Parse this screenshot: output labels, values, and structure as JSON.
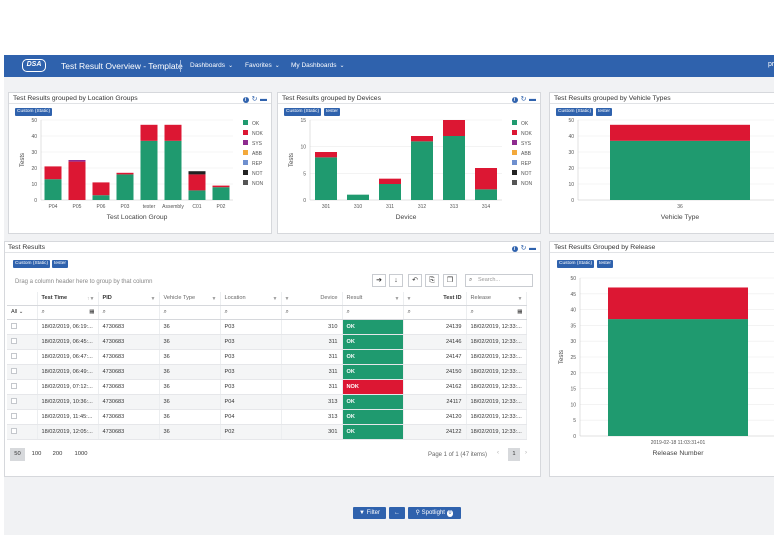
{
  "header": {
    "logo": "DSA",
    "title": "Test Result Overview - Template",
    "menus": [
      "Dashboards",
      "Favorites",
      "My Dashboards"
    ],
    "user": "pr"
  },
  "tags": {
    "custom": "Custom (Static)",
    "tester": "tester"
  },
  "legend": [
    "OK",
    "NOK",
    "SYS",
    "ABB",
    "REP",
    "NOT",
    "NON"
  ],
  "colors": {
    "OK": "#1f9a6f",
    "NOK": "#dc1733",
    "SYS": "#8d2a8f",
    "ABB": "#f3a93b",
    "REP": "#6e8fcf",
    "NOT": "#222222",
    "NON": "#555555",
    "brand": "#2f62ad"
  },
  "panels": {
    "location": {
      "title": "Test Results grouped by Location Groups"
    },
    "devices": {
      "title": "Test Results grouped by Devices"
    },
    "vehicle": {
      "title": "Test Results grouped by Vehicle Types"
    },
    "results": {
      "title": "Test Results"
    },
    "release": {
      "title": "Test Results Grouped by Release"
    }
  },
  "chart_data": [
    {
      "type": "bar",
      "stacked": true,
      "title": "Test Results grouped by Location Groups",
      "xlabel": "Test Location Group",
      "ylabel": "Tests",
      "ylim": [
        0,
        50
      ],
      "yticks": [
        0,
        10,
        20,
        30,
        40,
        50
      ],
      "categories": [
        "P04",
        "P05",
        "P06",
        "P03",
        "tester",
        "Assembly",
        "C01",
        "P02"
      ],
      "series": [
        {
          "name": "OK",
          "values": [
            13,
            0,
            3,
            16,
            37,
            37,
            6,
            8
          ]
        },
        {
          "name": "NOK",
          "values": [
            8,
            24,
            8,
            1,
            10,
            10,
            10,
            1
          ]
        },
        {
          "name": "SYS",
          "values": [
            0,
            1,
            0,
            0,
            0,
            0,
            0,
            0
          ]
        },
        {
          "name": "NOT",
          "values": [
            0,
            0,
            0,
            0,
            0,
            0,
            2,
            0
          ]
        }
      ],
      "legend": "right"
    },
    {
      "type": "bar",
      "stacked": true,
      "title": "Test Results grouped by Devices",
      "xlabel": "Device",
      "ylabel": "Tests",
      "ylim": [
        0,
        15
      ],
      "yticks": [
        0,
        5,
        10,
        15
      ],
      "categories": [
        "301",
        "310",
        "311",
        "312",
        "313",
        "314"
      ],
      "series": [
        {
          "name": "OK",
          "values": [
            8,
            1,
            3,
            11,
            12,
            2
          ]
        },
        {
          "name": "NOK",
          "values": [
            1,
            0,
            1,
            1,
            3,
            4
          ]
        }
      ],
      "legend": "right"
    },
    {
      "type": "bar",
      "stacked": true,
      "title": "Test Results grouped by Vehicle Types",
      "xlabel": "Vehicle Type",
      "ylabel": "",
      "ylim": [
        0,
        50
      ],
      "yticks": [
        0,
        10,
        20,
        30,
        40,
        50
      ],
      "categories": [
        "36"
      ],
      "series": [
        {
          "name": "OK",
          "values": [
            37
          ]
        },
        {
          "name": "NOK",
          "values": [
            10
          ]
        }
      ]
    },
    {
      "type": "bar",
      "stacked": true,
      "title": "Test Results Grouped by Release",
      "xlabel": "Release Number",
      "ylabel": "Tests",
      "ylim": [
        0,
        50
      ],
      "yticks": [
        0,
        5,
        10,
        15,
        20,
        25,
        30,
        35,
        40,
        45,
        50
      ],
      "categories": [
        "2019-02-18 11:03:31+01"
      ],
      "series": [
        {
          "name": "OK",
          "values": [
            37
          ]
        },
        {
          "name": "NOK",
          "values": [
            10
          ]
        }
      ]
    }
  ],
  "grid": {
    "group_hint": "Drag a column header here to group by that column",
    "search_placeholder": "Search...",
    "filter_all": "All",
    "columns": [
      "Test Time",
      "PID",
      "Vehicle Type",
      "Location",
      "Device",
      "Result",
      "Test ID",
      "Release"
    ],
    "rows": [
      [
        "18/02/2019, 06:19:...",
        "4730683",
        "36",
        "P03",
        "310",
        "OK",
        "24139",
        "18/02/2019, 12:33:..."
      ],
      [
        "18/02/2019, 06:45:...",
        "4730683",
        "36",
        "P03",
        "311",
        "OK",
        "24146",
        "18/02/2019, 12:33:..."
      ],
      [
        "18/02/2019, 06:47:...",
        "4730683",
        "36",
        "P03",
        "311",
        "OK",
        "24147",
        "18/02/2019, 12:33:..."
      ],
      [
        "18/02/2019, 06:49:...",
        "4730683",
        "36",
        "P03",
        "311",
        "OK",
        "24150",
        "18/02/2019, 12:33:..."
      ],
      [
        "18/02/2019, 07:12:...",
        "4730683",
        "36",
        "P03",
        "311",
        "NOK",
        "24162",
        "18/02/2019, 12:33:..."
      ],
      [
        "18/02/2019, 10:36:...",
        "4730683",
        "36",
        "P04",
        "313",
        "OK",
        "24117",
        "18/02/2019, 12:33:..."
      ],
      [
        "18/02/2019, 11:45:...",
        "4730683",
        "36",
        "P04",
        "313",
        "OK",
        "24120",
        "18/02/2019, 12:33:..."
      ],
      [
        "18/02/2019, 12:05:...",
        "4730683",
        "36",
        "P02",
        "301",
        "OK",
        "24122",
        "18/02/2019, 12:33:..."
      ]
    ],
    "page_sizes": [
      "50",
      "100",
      "200",
      "1000"
    ],
    "page_info": "Page 1 of 1 (47 items)",
    "current_page": "1"
  },
  "footer": {
    "filter": "Filter",
    "spotlight": "Spotlight",
    "spotlight_count": "0"
  }
}
